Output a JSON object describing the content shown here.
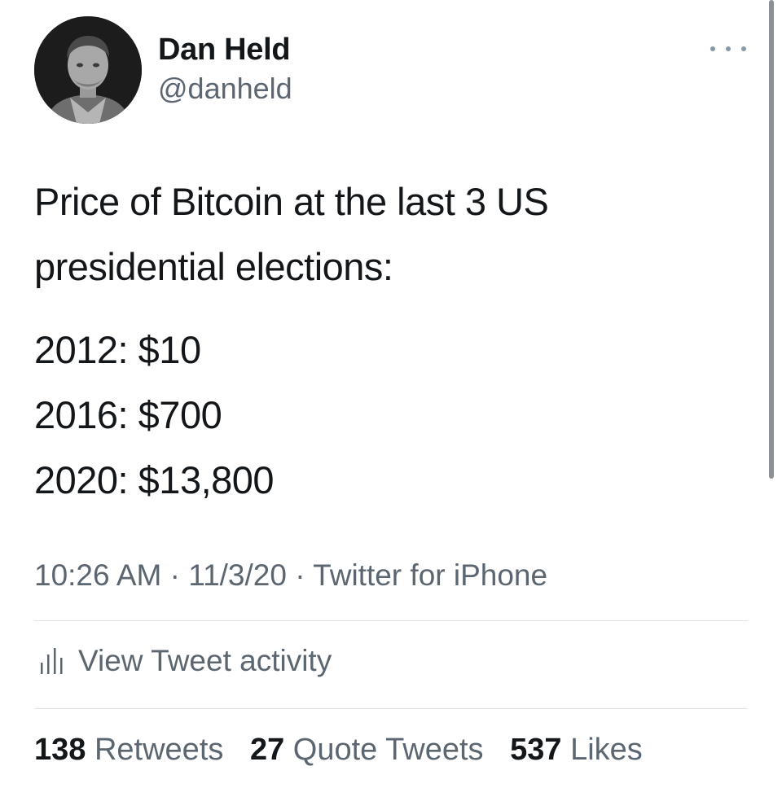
{
  "author": {
    "display_name": "Dan Held",
    "handle": "@danheld",
    "avatar_icon": "profile-photo"
  },
  "more_icon": "more-horizontal-icon",
  "tweet": {
    "lines": [
      "Price of Bitcoin at the last 3 US",
      "presidential elections:",
      "2012: $10",
      "2016: $700",
      "2020: $13,800"
    ]
  },
  "meta": {
    "time": "10:26 AM",
    "date": "11/3/20",
    "source": "Twitter for iPhone",
    "separator": "·"
  },
  "activity": {
    "icon": "bar-chart-icon",
    "label": "View Tweet activity"
  },
  "stats": {
    "retweets_count": "138",
    "retweets_label": "Retweets",
    "quotes_count": "27",
    "quotes_label": "Quote Tweets",
    "likes_count": "537",
    "likes_label": "Likes"
  },
  "colors": {
    "text_primary": "#14171a",
    "text_secondary": "#5b6670",
    "divider": "#dfe3e6",
    "scrollbar": "#8d9196"
  }
}
